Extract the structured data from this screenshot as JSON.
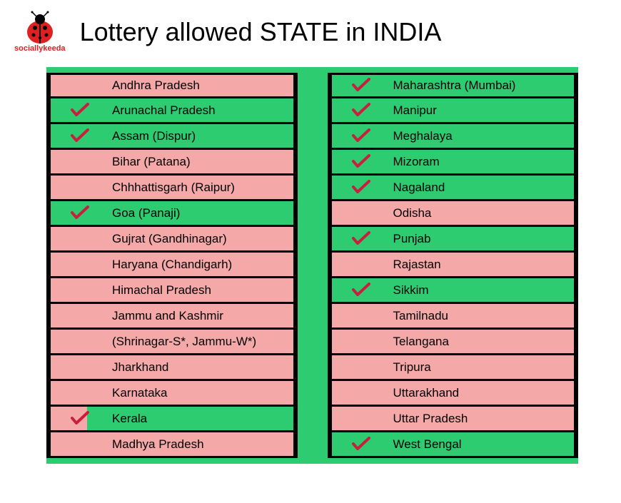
{
  "logo": {
    "text": "sociallykeeda",
    "text_color": "#e02020"
  },
  "title": "Lottery allowed STATE in INDIA",
  "colors": {
    "allowed_bg": "#2ecc71",
    "notallowed_bg": "#f5a8a8",
    "border": "#000000",
    "check": "#c91e3e",
    "container_bg": "#2ecc71"
  },
  "columns": {
    "left": [
      {
        "name": "Andhra Pradesh",
        "allowed": false
      },
      {
        "name": "Arunachal Pradesh",
        "allowed": true
      },
      {
        "name": "Assam (Dispur)",
        "allowed": true
      },
      {
        "name": "Bihar (Patana)",
        "allowed": false
      },
      {
        "name": "Chhhattisgarh (Raipur)",
        "allowed": false
      },
      {
        "name": "Goa (Panaji)",
        "allowed": true
      },
      {
        "name": "Gujrat (Gandhinagar)",
        "allowed": false
      },
      {
        "name": "Haryana (Chandigarh)",
        "allowed": false
      },
      {
        "name": "Himachal Pradesh",
        "allowed": false
      },
      {
        "name": "Jammu and Kashmir",
        "allowed": false
      },
      {
        "name": "(Shrinagar-S*, Jammu-W*)",
        "allowed": false
      },
      {
        "name": "Jharkhand",
        "allowed": false
      },
      {
        "name": "Karnataka",
        "allowed": false
      },
      {
        "name": "Kerala",
        "allowed": true,
        "special": true
      },
      {
        "name": "Madhya Pradesh",
        "allowed": false
      }
    ],
    "right": [
      {
        "name": "Maharashtra (Mumbai)",
        "allowed": true
      },
      {
        "name": "Manipur",
        "allowed": true
      },
      {
        "name": "Meghalaya",
        "allowed": true
      },
      {
        "name": "Mizoram",
        "allowed": true
      },
      {
        "name": "Nagaland",
        "allowed": true
      },
      {
        "name": "Odisha",
        "allowed": false
      },
      {
        "name": "Punjab",
        "allowed": true
      },
      {
        "name": "Rajastan",
        "allowed": false
      },
      {
        "name": "Sikkim",
        "allowed": true
      },
      {
        "name": "Tamilnadu",
        "allowed": false
      },
      {
        "name": "Telangana",
        "allowed": false
      },
      {
        "name": "Tripura",
        "allowed": false
      },
      {
        "name": "Uttarakhand",
        "allowed": false
      },
      {
        "name": "Uttar Pradesh",
        "allowed": false
      },
      {
        "name": "West Bengal",
        "allowed": true
      }
    ]
  }
}
